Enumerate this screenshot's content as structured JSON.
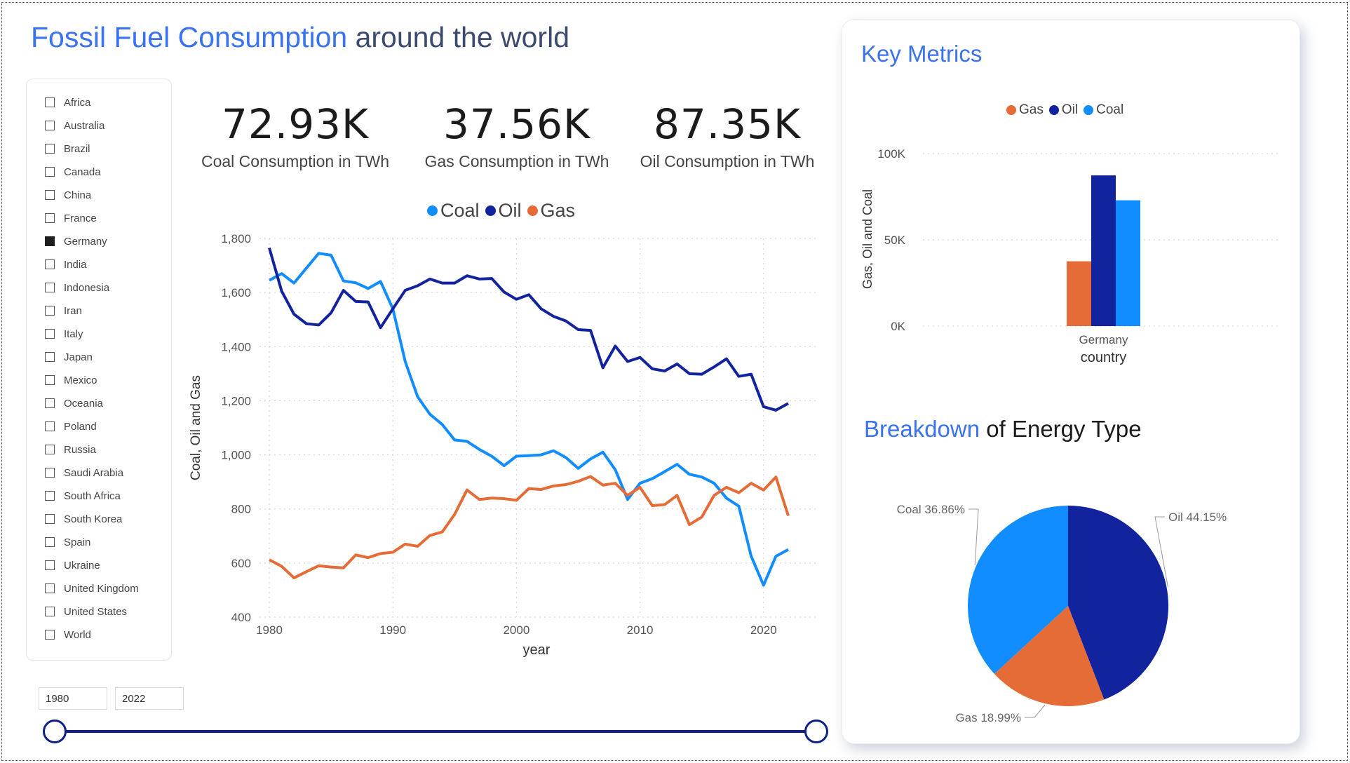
{
  "title": {
    "accent": "Fossil Fuel Consumption",
    "rest": " around the world"
  },
  "slicer": {
    "items": [
      {
        "label": "Africa",
        "checked": false
      },
      {
        "label": "Australia",
        "checked": false
      },
      {
        "label": "Brazil",
        "checked": false
      },
      {
        "label": "Canada",
        "checked": false
      },
      {
        "label": "China",
        "checked": false
      },
      {
        "label": "France",
        "checked": false
      },
      {
        "label": "Germany",
        "checked": true
      },
      {
        "label": "India",
        "checked": false
      },
      {
        "label": "Indonesia",
        "checked": false
      },
      {
        "label": "Iran",
        "checked": false
      },
      {
        "label": "Italy",
        "checked": false
      },
      {
        "label": "Japan",
        "checked": false
      },
      {
        "label": "Mexico",
        "checked": false
      },
      {
        "label": "Oceania",
        "checked": false
      },
      {
        "label": "Poland",
        "checked": false
      },
      {
        "label": "Russia",
        "checked": false
      },
      {
        "label": "Saudi Arabia",
        "checked": false
      },
      {
        "label": "South Africa",
        "checked": false
      },
      {
        "label": "South Korea",
        "checked": false
      },
      {
        "label": "Spain",
        "checked": false
      },
      {
        "label": "Ukraine",
        "checked": false
      },
      {
        "label": "United Kingdom",
        "checked": false
      },
      {
        "label": "United States",
        "checked": false
      },
      {
        "label": "World",
        "checked": false
      }
    ]
  },
  "range": {
    "start": "1980",
    "end": "2022"
  },
  "kpis": [
    {
      "value": "72.93K",
      "label": "Coal Consumption in TWh"
    },
    {
      "value": "37.56K",
      "label": "Gas Consumption in TWh"
    },
    {
      "value": "87.35K",
      "label": "Oil Consumption in TWh"
    }
  ],
  "colors": {
    "coal": "#118dff",
    "oil": "#12239e",
    "gas": "#e66c37"
  },
  "key_metrics": {
    "heading": "Key Metrics"
  },
  "breakdown": {
    "heading_accent": "Breakdown",
    "heading_rest": " of Energy Type"
  },
  "chart_data": [
    {
      "type": "line",
      "title": "",
      "xlabel": "year",
      "ylabel": "Coal, Oil and Gas",
      "legend": [
        "Coal",
        "Oil",
        "Gas"
      ],
      "ylim": [
        400,
        1800
      ],
      "xlim": [
        1980,
        2022
      ],
      "yticks": [
        "400",
        "600",
        "800",
        "1,000",
        "1,200",
        "1,400",
        "1,600",
        "1,800"
      ],
      "xticks": [
        "1980",
        "1990",
        "2000",
        "2010",
        "2020"
      ],
      "x": [
        1980,
        1981,
        1982,
        1983,
        1984,
        1985,
        1986,
        1987,
        1988,
        1989,
        1990,
        1991,
        1992,
        1993,
        1994,
        1995,
        1996,
        1997,
        1998,
        1999,
        2000,
        2001,
        2002,
        2003,
        2004,
        2005,
        2006,
        2007,
        2008,
        2009,
        2010,
        2011,
        2012,
        2013,
        2014,
        2015,
        2016,
        2017,
        2018,
        2019,
        2020,
        2021,
        2022
      ],
      "series": [
        {
          "name": "Coal",
          "color": "#118dff",
          "values": [
            1645,
            1670,
            1635,
            1690,
            1745,
            1738,
            1643,
            1636,
            1615,
            1641,
            1540,
            1345,
            1215,
            1150,
            1112,
            1055,
            1050,
            1020,
            995,
            960,
            995,
            997,
            1000,
            1015,
            990,
            950,
            985,
            1010,
            945,
            835,
            895,
            912,
            938,
            965,
            928,
            918,
            895,
            840,
            810,
            625,
            518,
            625,
            650
          ]
        },
        {
          "name": "Oil",
          "color": "#12239e",
          "values": [
            1765,
            1605,
            1520,
            1485,
            1480,
            1525,
            1608,
            1567,
            1565,
            1470,
            1540,
            1608,
            1625,
            1650,
            1635,
            1635,
            1662,
            1650,
            1652,
            1602,
            1575,
            1592,
            1540,
            1512,
            1495,
            1463,
            1460,
            1322,
            1402,
            1345,
            1360,
            1318,
            1310,
            1336,
            1300,
            1298,
            1325,
            1355,
            1290,
            1298,
            1178,
            1165,
            1190
          ]
        },
        {
          "name": "Gas",
          "color": "#e66c37",
          "values": [
            612,
            588,
            545,
            568,
            590,
            585,
            582,
            630,
            620,
            635,
            640,
            670,
            662,
            702,
            715,
            780,
            870,
            835,
            840,
            838,
            832,
            875,
            872,
            885,
            890,
            902,
            920,
            888,
            895,
            850,
            880,
            812,
            816,
            850,
            742,
            770,
            850,
            880,
            860,
            895,
            870,
            918,
            775
          ]
        }
      ]
    },
    {
      "type": "bar",
      "title": "",
      "xlabel": "country",
      "ylabel": "Gas, Oil and Coal",
      "categories": [
        "Germany"
      ],
      "ylim": [
        0,
        100000
      ],
      "yticks": [
        "0K",
        "50K",
        "100K"
      ],
      "series": [
        {
          "name": "Gas",
          "color": "#e66c37",
          "values": [
            37560
          ]
        },
        {
          "name": "Oil",
          "color": "#12239e",
          "values": [
            87350
          ]
        },
        {
          "name": "Coal",
          "color": "#118dff",
          "values": [
            72930
          ]
        }
      ]
    },
    {
      "type": "pie",
      "title": "",
      "slices": [
        {
          "name": "Oil",
          "label": "Oil 44.15%",
          "value": 44.15,
          "color": "#12239e"
        },
        {
          "name": "Gas",
          "label": "Gas 18.99%",
          "value": 18.99,
          "color": "#e66c37"
        },
        {
          "name": "Coal",
          "label": "Coal 36.86%",
          "value": 36.86,
          "color": "#118dff"
        }
      ]
    }
  ]
}
